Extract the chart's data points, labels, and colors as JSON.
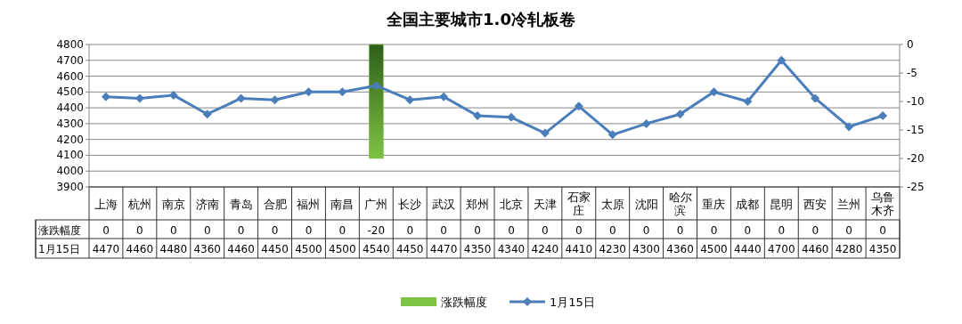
{
  "chart_data": {
    "type": "bar",
    "title": "全国主要城市1.0冷轧板卷",
    "categories": [
      "上海",
      "杭州",
      "南京",
      "济南",
      "青岛",
      "合肥",
      "福州",
      "南昌",
      "广州",
      "长沙",
      "武汉",
      "郑州",
      "北京",
      "天津",
      "石家庄",
      "太原",
      "沈阳",
      "哈尔滨",
      "重庆",
      "成都",
      "昆明",
      "西安",
      "兰州",
      "乌鲁木齐"
    ],
    "series": [
      {
        "name": "涨跌幅度",
        "axis": "y2",
        "color": "#7dc242",
        "values": [
          0,
          0,
          0,
          0,
          0,
          0,
          0,
          0,
          -20,
          0,
          0,
          0,
          0,
          0,
          0,
          0,
          0,
          0,
          0,
          0,
          0,
          0,
          0,
          0
        ]
      },
      {
        "name": "1月15日",
        "type": "line",
        "color": "#4a7ebb",
        "values": [
          4470,
          4460,
          4480,
          4360,
          4460,
          4450,
          4500,
          4500,
          4540,
          4450,
          4470,
          4350,
          4340,
          4240,
          4410,
          4230,
          4300,
          4360,
          4500,
          4440,
          4700,
          4460,
          4280,
          4350
        ]
      }
    ],
    "ylim": [
      3900,
      4800
    ],
    "yticks": [
      3900,
      4000,
      4100,
      4200,
      4300,
      4400,
      4500,
      4600,
      4700,
      4800
    ],
    "y2lim": [
      -25,
      0
    ],
    "y2ticks": [
      -25,
      -20,
      -15,
      -10,
      -5,
      0
    ],
    "grid": "y",
    "legend": "bottom",
    "marker": "diamond",
    "data_labels": true
  }
}
